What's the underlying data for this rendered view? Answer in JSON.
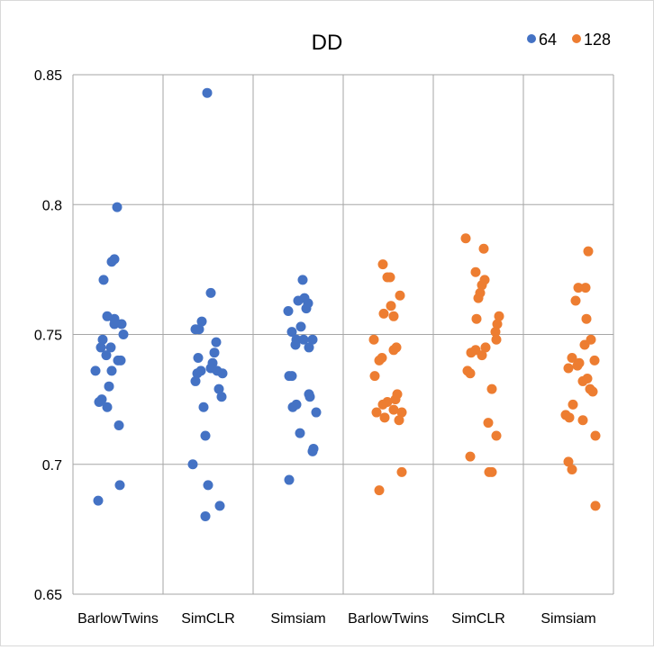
{
  "chart_data": {
    "type": "scatter",
    "title": "DD",
    "xlabel": "",
    "ylabel": "",
    "categories": [
      "BarlowTwins",
      "SimCLR",
      "Simsiam",
      "BarlowTwins",
      "SimCLR",
      "Simsiam"
    ],
    "ylim": [
      0.65,
      0.85
    ],
    "yticks": [
      "0.65",
      "0.7",
      "0.75",
      "0.8",
      "0.85"
    ],
    "grid": true,
    "legend_position": "top-right",
    "series": [
      {
        "name": "64",
        "color": "#4472c4",
        "groups": [
          {
            "category_index": 0,
            "points": [
              {
                "x": 0.49,
                "y": 0.799
              },
              {
                "x": 0.46,
                "y": 0.779
              },
              {
                "x": 0.43,
                "y": 0.778
              },
              {
                "x": 0.34,
                "y": 0.771
              },
              {
                "x": 0.38,
                "y": 0.757
              },
              {
                "x": 0.46,
                "y": 0.756
              },
              {
                "x": 0.54,
                "y": 0.754
              },
              {
                "x": 0.46,
                "y": 0.754
              },
              {
                "x": 0.56,
                "y": 0.75
              },
              {
                "x": 0.33,
                "y": 0.748
              },
              {
                "x": 0.31,
                "y": 0.745
              },
              {
                "x": 0.42,
                "y": 0.745
              },
              {
                "x": 0.37,
                "y": 0.742
              },
              {
                "x": 0.53,
                "y": 0.74
              },
              {
                "x": 0.5,
                "y": 0.74
              },
              {
                "x": 0.43,
                "y": 0.736
              },
              {
                "x": 0.25,
                "y": 0.736
              },
              {
                "x": 0.4,
                "y": 0.73
              },
              {
                "x": 0.32,
                "y": 0.725
              },
              {
                "x": 0.29,
                "y": 0.724
              },
              {
                "x": 0.38,
                "y": 0.722
              },
              {
                "x": 0.51,
                "y": 0.715
              },
              {
                "x": 0.52,
                "y": 0.692
              },
              {
                "x": 0.28,
                "y": 0.686
              }
            ]
          },
          {
            "category_index": 1,
            "points": [
              {
                "x": 0.49,
                "y": 0.843
              },
              {
                "x": 0.53,
                "y": 0.766
              },
              {
                "x": 0.43,
                "y": 0.755
              },
              {
                "x": 0.4,
                "y": 0.752
              },
              {
                "x": 0.36,
                "y": 0.752
              },
              {
                "x": 0.59,
                "y": 0.747
              },
              {
                "x": 0.57,
                "y": 0.743
              },
              {
                "x": 0.39,
                "y": 0.741
              },
              {
                "x": 0.55,
                "y": 0.739
              },
              {
                "x": 0.53,
                "y": 0.737
              },
              {
                "x": 0.6,
                "y": 0.736
              },
              {
                "x": 0.42,
                "y": 0.736
              },
              {
                "x": 0.66,
                "y": 0.735
              },
              {
                "x": 0.38,
                "y": 0.735
              },
              {
                "x": 0.36,
                "y": 0.732
              },
              {
                "x": 0.62,
                "y": 0.729
              },
              {
                "x": 0.65,
                "y": 0.726
              },
              {
                "x": 0.45,
                "y": 0.722
              },
              {
                "x": 0.47,
                "y": 0.711
              },
              {
                "x": 0.33,
                "y": 0.7
              },
              {
                "x": 0.5,
                "y": 0.692
              },
              {
                "x": 0.63,
                "y": 0.684
              },
              {
                "x": 0.47,
                "y": 0.68
              }
            ]
          },
          {
            "category_index": 2,
            "points": [
              {
                "x": 0.55,
                "y": 0.771
              },
              {
                "x": 0.5,
                "y": 0.763
              },
              {
                "x": 0.57,
                "y": 0.764
              },
              {
                "x": 0.61,
                "y": 0.762
              },
              {
                "x": 0.59,
                "y": 0.76
              },
              {
                "x": 0.39,
                "y": 0.759
              },
              {
                "x": 0.53,
                "y": 0.753
              },
              {
                "x": 0.43,
                "y": 0.751
              },
              {
                "x": 0.66,
                "y": 0.748
              },
              {
                "x": 0.48,
                "y": 0.748
              },
              {
                "x": 0.56,
                "y": 0.748
              },
              {
                "x": 0.47,
                "y": 0.746
              },
              {
                "x": 0.62,
                "y": 0.745
              },
              {
                "x": 0.4,
                "y": 0.734
              },
              {
                "x": 0.43,
                "y": 0.734
              },
              {
                "x": 0.63,
                "y": 0.726
              },
              {
                "x": 0.62,
                "y": 0.727
              },
              {
                "x": 0.48,
                "y": 0.723
              },
              {
                "x": 0.44,
                "y": 0.722
              },
              {
                "x": 0.7,
                "y": 0.72
              },
              {
                "x": 0.52,
                "y": 0.712
              },
              {
                "x": 0.67,
                "y": 0.706
              },
              {
                "x": 0.66,
                "y": 0.705
              },
              {
                "x": 0.4,
                "y": 0.694
              }
            ]
          }
        ]
      },
      {
        "name": "128",
        "color": "#ed7d31",
        "groups": [
          {
            "category_index": 3,
            "points": [
              {
                "x": 0.44,
                "y": 0.777
              },
              {
                "x": 0.49,
                "y": 0.772
              },
              {
                "x": 0.52,
                "y": 0.772
              },
              {
                "x": 0.63,
                "y": 0.765
              },
              {
                "x": 0.53,
                "y": 0.761
              },
              {
                "x": 0.45,
                "y": 0.758
              },
              {
                "x": 0.56,
                "y": 0.757
              },
              {
                "x": 0.34,
                "y": 0.748
              },
              {
                "x": 0.59,
                "y": 0.745
              },
              {
                "x": 0.56,
                "y": 0.744
              },
              {
                "x": 0.43,
                "y": 0.741
              },
              {
                "x": 0.4,
                "y": 0.74
              },
              {
                "x": 0.35,
                "y": 0.734
              },
              {
                "x": 0.6,
                "y": 0.727
              },
              {
                "x": 0.58,
                "y": 0.725
              },
              {
                "x": 0.49,
                "y": 0.724
              },
              {
                "x": 0.44,
                "y": 0.723
              },
              {
                "x": 0.56,
                "y": 0.721
              },
              {
                "x": 0.65,
                "y": 0.72
              },
              {
                "x": 0.37,
                "y": 0.72
              },
              {
                "x": 0.46,
                "y": 0.718
              },
              {
                "x": 0.62,
                "y": 0.717
              },
              {
                "x": 0.65,
                "y": 0.697
              },
              {
                "x": 0.4,
                "y": 0.69
              }
            ]
          },
          {
            "category_index": 4,
            "points": [
              {
                "x": 0.36,
                "y": 0.787
              },
              {
                "x": 0.56,
                "y": 0.783
              },
              {
                "x": 0.47,
                "y": 0.774
              },
              {
                "x": 0.57,
                "y": 0.771
              },
              {
                "x": 0.54,
                "y": 0.769
              },
              {
                "x": 0.52,
                "y": 0.766
              },
              {
                "x": 0.5,
                "y": 0.764
              },
              {
                "x": 0.73,
                "y": 0.757
              },
              {
                "x": 0.48,
                "y": 0.756
              },
              {
                "x": 0.71,
                "y": 0.754
              },
              {
                "x": 0.69,
                "y": 0.751
              },
              {
                "x": 0.7,
                "y": 0.748
              },
              {
                "x": 0.58,
                "y": 0.745
              },
              {
                "x": 0.47,
                "y": 0.744
              },
              {
                "x": 0.42,
                "y": 0.743
              },
              {
                "x": 0.54,
                "y": 0.742
              },
              {
                "x": 0.38,
                "y": 0.736
              },
              {
                "x": 0.41,
                "y": 0.735
              },
              {
                "x": 0.65,
                "y": 0.729
              },
              {
                "x": 0.61,
                "y": 0.716
              },
              {
                "x": 0.7,
                "y": 0.711
              },
              {
                "x": 0.41,
                "y": 0.703
              },
              {
                "x": 0.62,
                "y": 0.697
              },
              {
                "x": 0.65,
                "y": 0.697
              }
            ]
          },
          {
            "category_index": 5,
            "points": [
              {
                "x": 0.72,
                "y": 0.782
              },
              {
                "x": 0.61,
                "y": 0.768
              },
              {
                "x": 0.69,
                "y": 0.768
              },
              {
                "x": 0.58,
                "y": 0.763
              },
              {
                "x": 0.7,
                "y": 0.756
              },
              {
                "x": 0.75,
                "y": 0.748
              },
              {
                "x": 0.68,
                "y": 0.746
              },
              {
                "x": 0.54,
                "y": 0.741
              },
              {
                "x": 0.62,
                "y": 0.739
              },
              {
                "x": 0.79,
                "y": 0.74
              },
              {
                "x": 0.5,
                "y": 0.737
              },
              {
                "x": 0.6,
                "y": 0.738
              },
              {
                "x": 0.71,
                "y": 0.733
              },
              {
                "x": 0.66,
                "y": 0.732
              },
              {
                "x": 0.74,
                "y": 0.729
              },
              {
                "x": 0.77,
                "y": 0.728
              },
              {
                "x": 0.55,
                "y": 0.723
              },
              {
                "x": 0.47,
                "y": 0.719
              },
              {
                "x": 0.51,
                "y": 0.718
              },
              {
                "x": 0.66,
                "y": 0.717
              },
              {
                "x": 0.8,
                "y": 0.711
              },
              {
                "x": 0.5,
                "y": 0.701
              },
              {
                "x": 0.54,
                "y": 0.698
              },
              {
                "x": 0.8,
                "y": 0.684
              }
            ]
          }
        ]
      }
    ]
  }
}
